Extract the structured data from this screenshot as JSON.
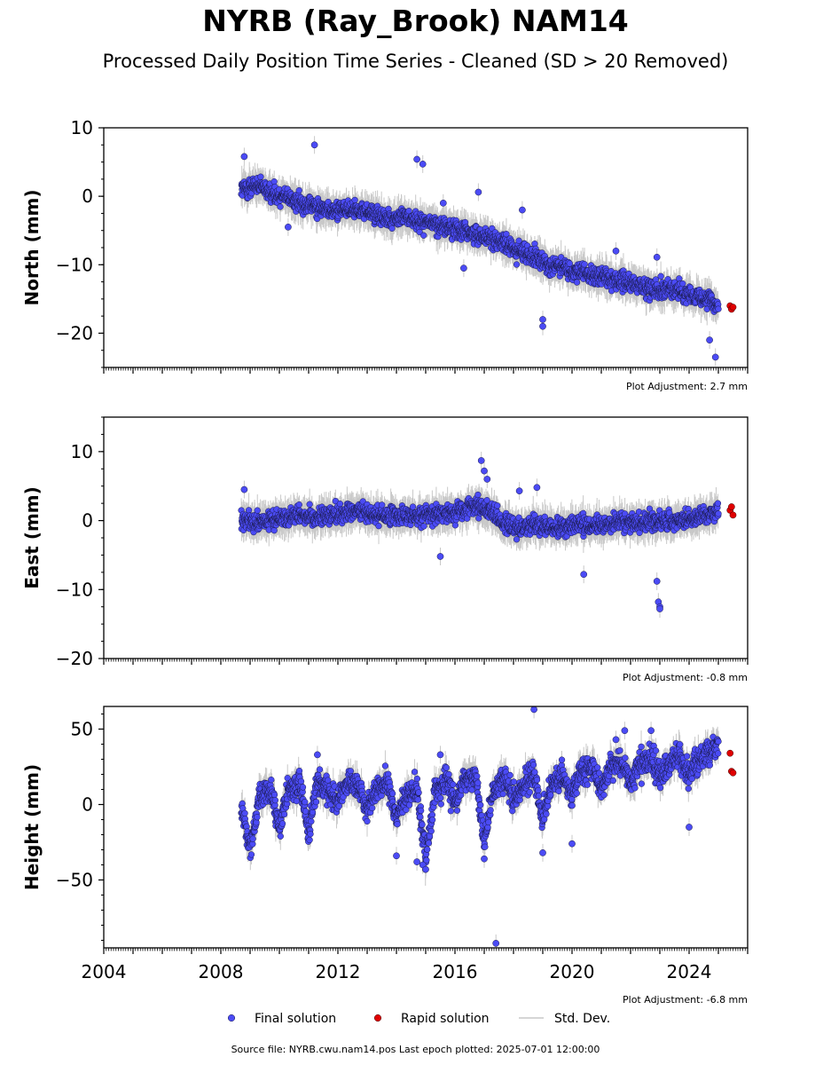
{
  "title": "NYRB (Ray_Brook) NAM14",
  "subtitle": "Processed Daily Position Time Series - Cleaned (SD > 20 Removed)",
  "footer": "Source file: NYRB.cwu.nam14.pos  Last epoch plotted: 2025-07-01 12:00:00",
  "colors": {
    "final": "#4b4bf5",
    "rapid": "#e00000",
    "stddev": "#c8c8c8"
  },
  "chart_data": [
    {
      "type": "scatter",
      "panel": "north",
      "ylabel": "North (mm)",
      "xlim": [
        2004,
        2026
      ],
      "ylim": [
        -25,
        10
      ],
      "yticks": [
        10,
        0,
        -10,
        -20
      ],
      "ytick_labels": [
        "10",
        "0",
        "−10",
        "−20"
      ],
      "adjustment": "Plot Adjustment: 2.7 mm",
      "series": [
        {
          "name": "Final solution",
          "x": [
            2008.7,
            2009.2,
            2009.7,
            2010.2,
            2010.7,
            2011.2,
            2011.7,
            2012.2,
            2012.7,
            2013.2,
            2013.7,
            2014.2,
            2014.7,
            2015.2,
            2015.7,
            2016.2,
            2016.7,
            2017.2,
            2017.7,
            2018.2,
            2018.7,
            2019.2,
            2019.7,
            2020.2,
            2020.7,
            2021.2,
            2021.7,
            2022.2,
            2022.7,
            2023.2,
            2023.7,
            2024.2,
            2024.7,
            2025.0
          ],
          "y": [
            1,
            1.5,
            0.5,
            0,
            -1,
            -1.5,
            -2,
            -2,
            -2,
            -2.5,
            -3.5,
            -3,
            -3.5,
            -4,
            -4.5,
            -5,
            -5.5,
            -6,
            -7,
            -8,
            -9,
            -10,
            -10.5,
            -11,
            -11.5,
            -12,
            -12.5,
            -13,
            -13.5,
            -13.5,
            -14,
            -14.5,
            -15,
            -16
          ]
        },
        {
          "name": "Rapid solution",
          "x": [
            2025.4,
            2025.45,
            2025.5
          ],
          "y": [
            -16,
            -16.5,
            -16.2
          ]
        }
      ],
      "outliers": {
        "x": [
          2008.8,
          2010.3,
          2011.2,
          2014.7,
          2014.9,
          2015.6,
          2016.3,
          2016.8,
          2018.3,
          2019.0,
          2019.0,
          2021.5,
          2022.9,
          2024.7,
          2024.9
        ],
        "y": [
          5.8,
          -4.5,
          7.5,
          5.4,
          4.7,
          -1.0,
          -10.5,
          0.6,
          -2.0,
          -19.0,
          -18.0,
          -8.0,
          -8.9,
          -21.0,
          -23.5
        ]
      }
    },
    {
      "type": "scatter",
      "panel": "east",
      "ylabel": "East (mm)",
      "xlim": [
        2004,
        2026
      ],
      "ylim": [
        -20,
        15
      ],
      "yticks": [
        10,
        0,
        -10,
        -20
      ],
      "ytick_labels": [
        "10",
        "0",
        "−10",
        "−20"
      ],
      "adjustment": "Plot Adjustment: -0.8 mm",
      "series": [
        {
          "name": "Final solution",
          "x": [
            2008.7,
            2009.2,
            2009.7,
            2010.2,
            2010.7,
            2011.2,
            2011.7,
            2012.2,
            2012.7,
            2013.2,
            2013.7,
            2014.2,
            2014.7,
            2015.2,
            2015.7,
            2016.2,
            2016.7,
            2017.2,
            2017.7,
            2018.2,
            2018.7,
            2019.2,
            2019.7,
            2020.2,
            2020.7,
            2021.2,
            2021.7,
            2022.2,
            2022.7,
            2023.2,
            2023.7,
            2024.2,
            2024.7,
            2025.0
          ],
          "y": [
            0,
            -0.5,
            0,
            0.5,
            1,
            0.5,
            1,
            1,
            1.5,
            1,
            0.5,
            1,
            0.5,
            1,
            1,
            1.5,
            2,
            1.5,
            -0.5,
            -1,
            -0.5,
            -1,
            -1,
            -0.5,
            -1,
            -0.5,
            0,
            -0.5,
            0,
            0,
            0,
            0.5,
            1,
            1.5
          ]
        },
        {
          "name": "Rapid solution",
          "x": [
            2025.4,
            2025.45,
            2025.5
          ],
          "y": [
            1.5,
            2.0,
            0.8
          ]
        }
      ],
      "outliers": {
        "x": [
          2008.8,
          2015.5,
          2016.9,
          2017.0,
          2017.1,
          2018.2,
          2018.8,
          2020.4,
          2022.9,
          2022.95,
          2023.0,
          2023.0
        ],
        "y": [
          4.5,
          -5.2,
          8.7,
          7.2,
          6.0,
          4.3,
          4.8,
          -7.8,
          -8.8,
          -11.8,
          -12.5,
          -12.8
        ]
      }
    },
    {
      "type": "scatter",
      "panel": "height",
      "ylabel": "Height (mm)",
      "xlim": [
        2004,
        2026
      ],
      "xticks": [
        2004,
        2008,
        2012,
        2016,
        2020,
        2024
      ],
      "xtick_labels": [
        "2004",
        "2008",
        "2012",
        "2016",
        "2020",
        "2024"
      ],
      "ylim": [
        -95,
        65
      ],
      "yticks": [
        50,
        0,
        -50
      ],
      "ytick_labels": [
        "50",
        "0",
        "−50"
      ],
      "adjustment": "Plot Adjustment: -6.8 mm",
      "series": [
        {
          "name": "Final solution",
          "x": [
            2008.7,
            2009.0,
            2009.3,
            2009.7,
            2010.0,
            2010.3,
            2010.7,
            2011.0,
            2011.3,
            2011.7,
            2012.0,
            2012.3,
            2012.7,
            2013.0,
            2013.3,
            2013.7,
            2014.0,
            2014.3,
            2014.7,
            2015.0,
            2015.3,
            2015.7,
            2016.0,
            2016.3,
            2016.7,
            2017.0,
            2017.3,
            2017.7,
            2018.0,
            2018.3,
            2018.7,
            2019.0,
            2019.3,
            2019.7,
            2020.0,
            2020.3,
            2020.7,
            2021.0,
            2021.3,
            2021.7,
            2022.0,
            2022.3,
            2022.7,
            2023.0,
            2023.3,
            2023.7,
            2024.0,
            2024.3,
            2024.7,
            2025.0
          ],
          "y": [
            0,
            -30,
            5,
            10,
            -15,
            10,
            15,
            -20,
            15,
            10,
            0,
            15,
            12,
            -5,
            10,
            15,
            -10,
            5,
            10,
            -35,
            8,
            18,
            0,
            15,
            20,
            -25,
            10,
            18,
            5,
            12,
            20,
            -10,
            15,
            18,
            5,
            22,
            25,
            10,
            25,
            28,
            15,
            28,
            30,
            18,
            28,
            30,
            20,
            30,
            35,
            38
          ]
        },
        {
          "name": "Rapid solution",
          "x": [
            2025.4,
            2025.45,
            2025.5
          ],
          "y": [
            34,
            22,
            21
          ]
        }
      ],
      "outliers": {
        "x": [
          2011.3,
          2014.0,
          2014.7,
          2014.9,
          2015.0,
          2015.5,
          2017.0,
          2017.4,
          2018.7,
          2019.0,
          2020.0,
          2021.5,
          2021.8,
          2022.7,
          2024.0
        ],
        "y": [
          33,
          -34,
          -38,
          -40,
          -43,
          33,
          -36,
          -92,
          63,
          -32,
          -26,
          43,
          49,
          49,
          -15
        ]
      }
    }
  ],
  "legend": {
    "items": [
      {
        "label": "Final solution",
        "kind": "dot",
        "color": "#4b4bf5"
      },
      {
        "label": "Rapid solution",
        "kind": "dot",
        "color": "#e00000"
      },
      {
        "label": "Std. Dev.",
        "kind": "line",
        "color": "#c8c8c8"
      }
    ]
  }
}
